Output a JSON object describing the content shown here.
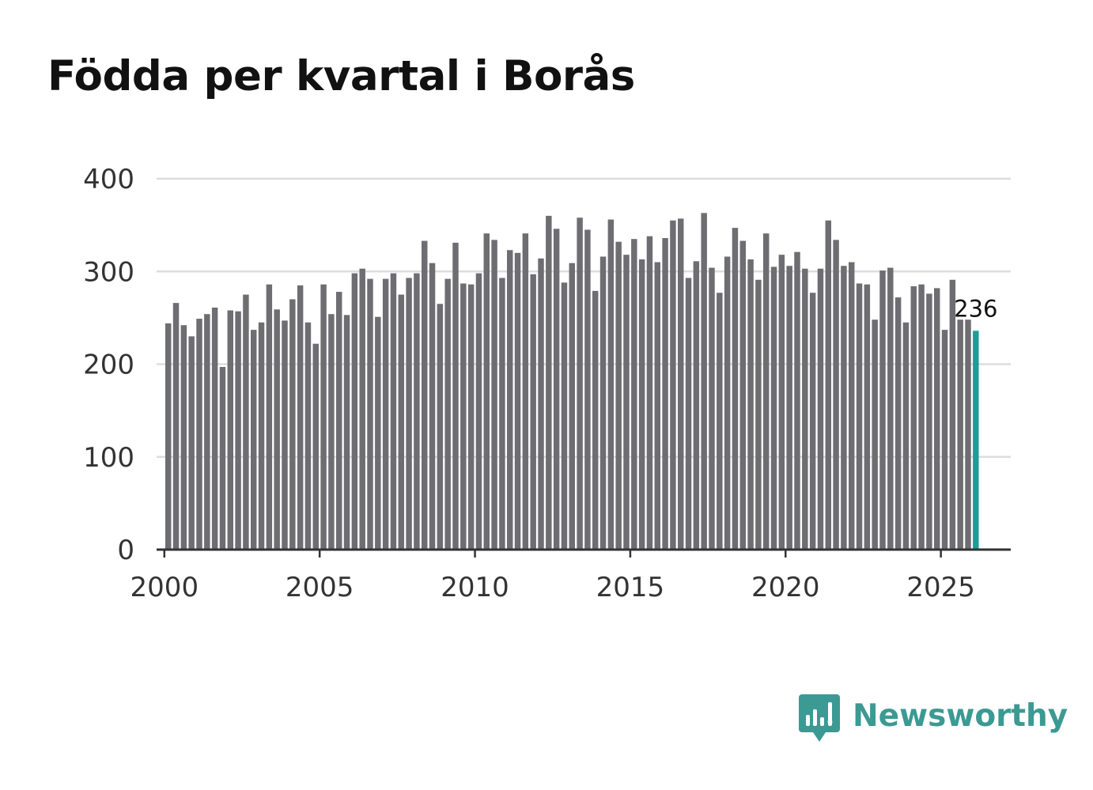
{
  "title": "Födda per kvartal i Borås",
  "brand": {
    "name": "Newsworthy",
    "color": "#3b9a93",
    "icon": "newsworthy-logo-icon"
  },
  "colors": {
    "bar": "#6e6d72",
    "highlight": "#1a9e96",
    "grid": "#dddddd",
    "axis": "#333333"
  },
  "chart_data": {
    "type": "bar",
    "title": "Födda per kvartal i Borås",
    "xlabel": "",
    "ylabel": "",
    "ylim": [
      0,
      400
    ],
    "x_range": [
      1999.75,
      2027.25
    ],
    "grid": true,
    "y_ticks": [
      "0",
      "100",
      "200",
      "300",
      "400"
    ],
    "x_ticks": [
      "2000",
      "2005",
      "2010",
      "2015",
      "2020",
      "2025"
    ],
    "start_year": 2000,
    "start_quarter": 1,
    "values": [
      244,
      266,
      242,
      230,
      249,
      254,
      261,
      197,
      258,
      257,
      275,
      237,
      245,
      286,
      259,
      247,
      270,
      285,
      245,
      222,
      286,
      254,
      278,
      253,
      298,
      303,
      292,
      251,
      292,
      298,
      275,
      293,
      298,
      333,
      309,
      265,
      292,
      331,
      287,
      286,
      298,
      341,
      334,
      293,
      323,
      320,
      341,
      297,
      314,
      360,
      346,
      288,
      309,
      358,
      345,
      279,
      316,
      356,
      332,
      318,
      335,
      313,
      338,
      310,
      336,
      355,
      357,
      293,
      311,
      363,
      304,
      277,
      316,
      347,
      333,
      313,
      291,
      341,
      305,
      318,
      306,
      321,
      303,
      277,
      303,
      355,
      334,
      306,
      310,
      287,
      286,
      248,
      301,
      304,
      272,
      245,
      284,
      286,
      276,
      282,
      237,
      291,
      248,
      248,
      236
    ],
    "highlight_index": 104,
    "annotation": "236"
  }
}
